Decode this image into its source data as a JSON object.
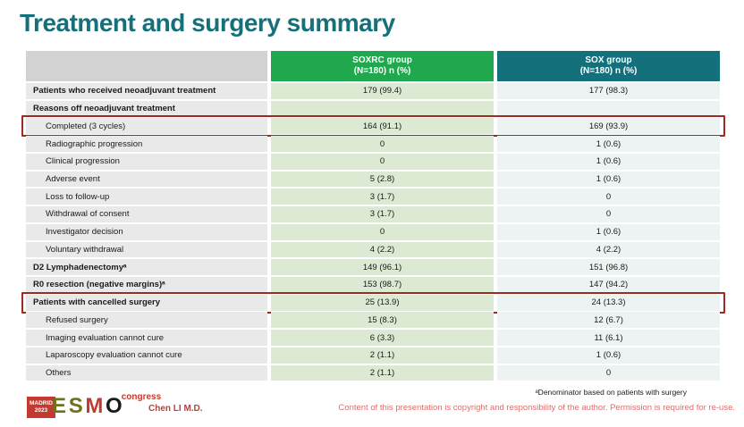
{
  "slide": {
    "title": "Treatment and surgery summary"
  },
  "table": {
    "columns": [
      {
        "line1": "",
        "line2": ""
      },
      {
        "line1": "SOXRC group",
        "line2": "(N=180)  n (%)"
      },
      {
        "line1": "SOX group",
        "line2": "(N=180)  n (%)"
      }
    ],
    "rows": [
      {
        "label": "Patients who received neoadjuvant treatment",
        "soxrc": "179 (99.4)",
        "sox": "177 (98.3)",
        "style": "section",
        "highlight": false
      },
      {
        "label": "Reasons off neoadjuvant treatment",
        "soxrc": "",
        "sox": "",
        "style": "section",
        "highlight": false
      },
      {
        "label": "Completed (3 cycles)",
        "soxrc": "164 (91.1)",
        "sox": "169 (93.9)",
        "style": "sub",
        "highlight": true
      },
      {
        "label": "Radiographic progression",
        "soxrc": "0",
        "sox": "1 (0.6)",
        "style": "sub",
        "highlight": false
      },
      {
        "label": "Clinical progression",
        "soxrc": "0",
        "sox": "1 (0.6)",
        "style": "sub",
        "highlight": false
      },
      {
        "label": "Adverse event",
        "soxrc": "5 (2.8)",
        "sox": "1 (0.6)",
        "style": "sub",
        "highlight": false
      },
      {
        "label": "Loss to follow-up",
        "soxrc": "3 (1.7)",
        "sox": "0",
        "style": "sub",
        "highlight": false
      },
      {
        "label": "Withdrawal of consent",
        "soxrc": "3 (1.7)",
        "sox": "0",
        "style": "sub",
        "highlight": false
      },
      {
        "label": "Investigator decision",
        "soxrc": "0",
        "sox": "1 (0.6)",
        "style": "sub",
        "highlight": false
      },
      {
        "label": "Voluntary withdrawal",
        "soxrc": "4 (2.2)",
        "sox": "4 (2.2)",
        "style": "sub",
        "highlight": false
      },
      {
        "label": "D2 Lymphadenectomyᵃ",
        "soxrc": "149 (96.1)",
        "sox": "151 (96.8)",
        "style": "section",
        "highlight": false
      },
      {
        "label": "R0 resection (negative margins)ᵃ",
        "soxrc": "153 (98.7)",
        "sox": "147 (94.2)",
        "style": "section",
        "highlight": false
      },
      {
        "label": "Patients with cancelled surgery",
        "soxrc": "25 (13.9)",
        "sox": "24 (13.3)",
        "style": "section",
        "highlight": true
      },
      {
        "label": "Refused surgery",
        "soxrc": "15 (8.3)",
        "sox": "12 (6.7)",
        "style": "sub",
        "highlight": false
      },
      {
        "label": "Imaging evaluation cannot cure",
        "soxrc": "6 (3.3)",
        "sox": "11 (6.1)",
        "style": "sub",
        "highlight": false
      },
      {
        "label": "Laparoscopy evaluation cannot cure",
        "soxrc": "2 (1.1)",
        "sox": "1 (0.6)",
        "style": "sub",
        "highlight": false
      },
      {
        "label": "Others",
        "soxrc": "2 (1.1)",
        "sox": "0",
        "style": "sub",
        "highlight": false
      }
    ]
  },
  "footer": {
    "footnote": "ᵃDenominator based on patients with surgery",
    "copyright": "Content of this presentation is copyright and responsibility of the author. Permission is required for re-use.",
    "presenter": "Chen LI M.D.",
    "logo": {
      "badge_line1": "MADRID",
      "badge_line2": "2023",
      "letters": [
        "E",
        "S",
        "M",
        "O"
      ],
      "congress": "congress"
    }
  },
  "colors": {
    "title": "#16707a",
    "header_soxrc": "#1fa84d",
    "header_sox": "#14707b",
    "header_label_bg": "#d2d2d2",
    "label_col_bg": "#e9e9e9",
    "soxrc_col_bg": "#dce9d3",
    "sox_col_bg": "#edf3f2",
    "highlight_border": "#9d2b21",
    "copyright_text": "#d8716e",
    "presenter_text": "#ae453e",
    "logo_red": "#c23b31",
    "logo_olive": "#6f7119"
  }
}
